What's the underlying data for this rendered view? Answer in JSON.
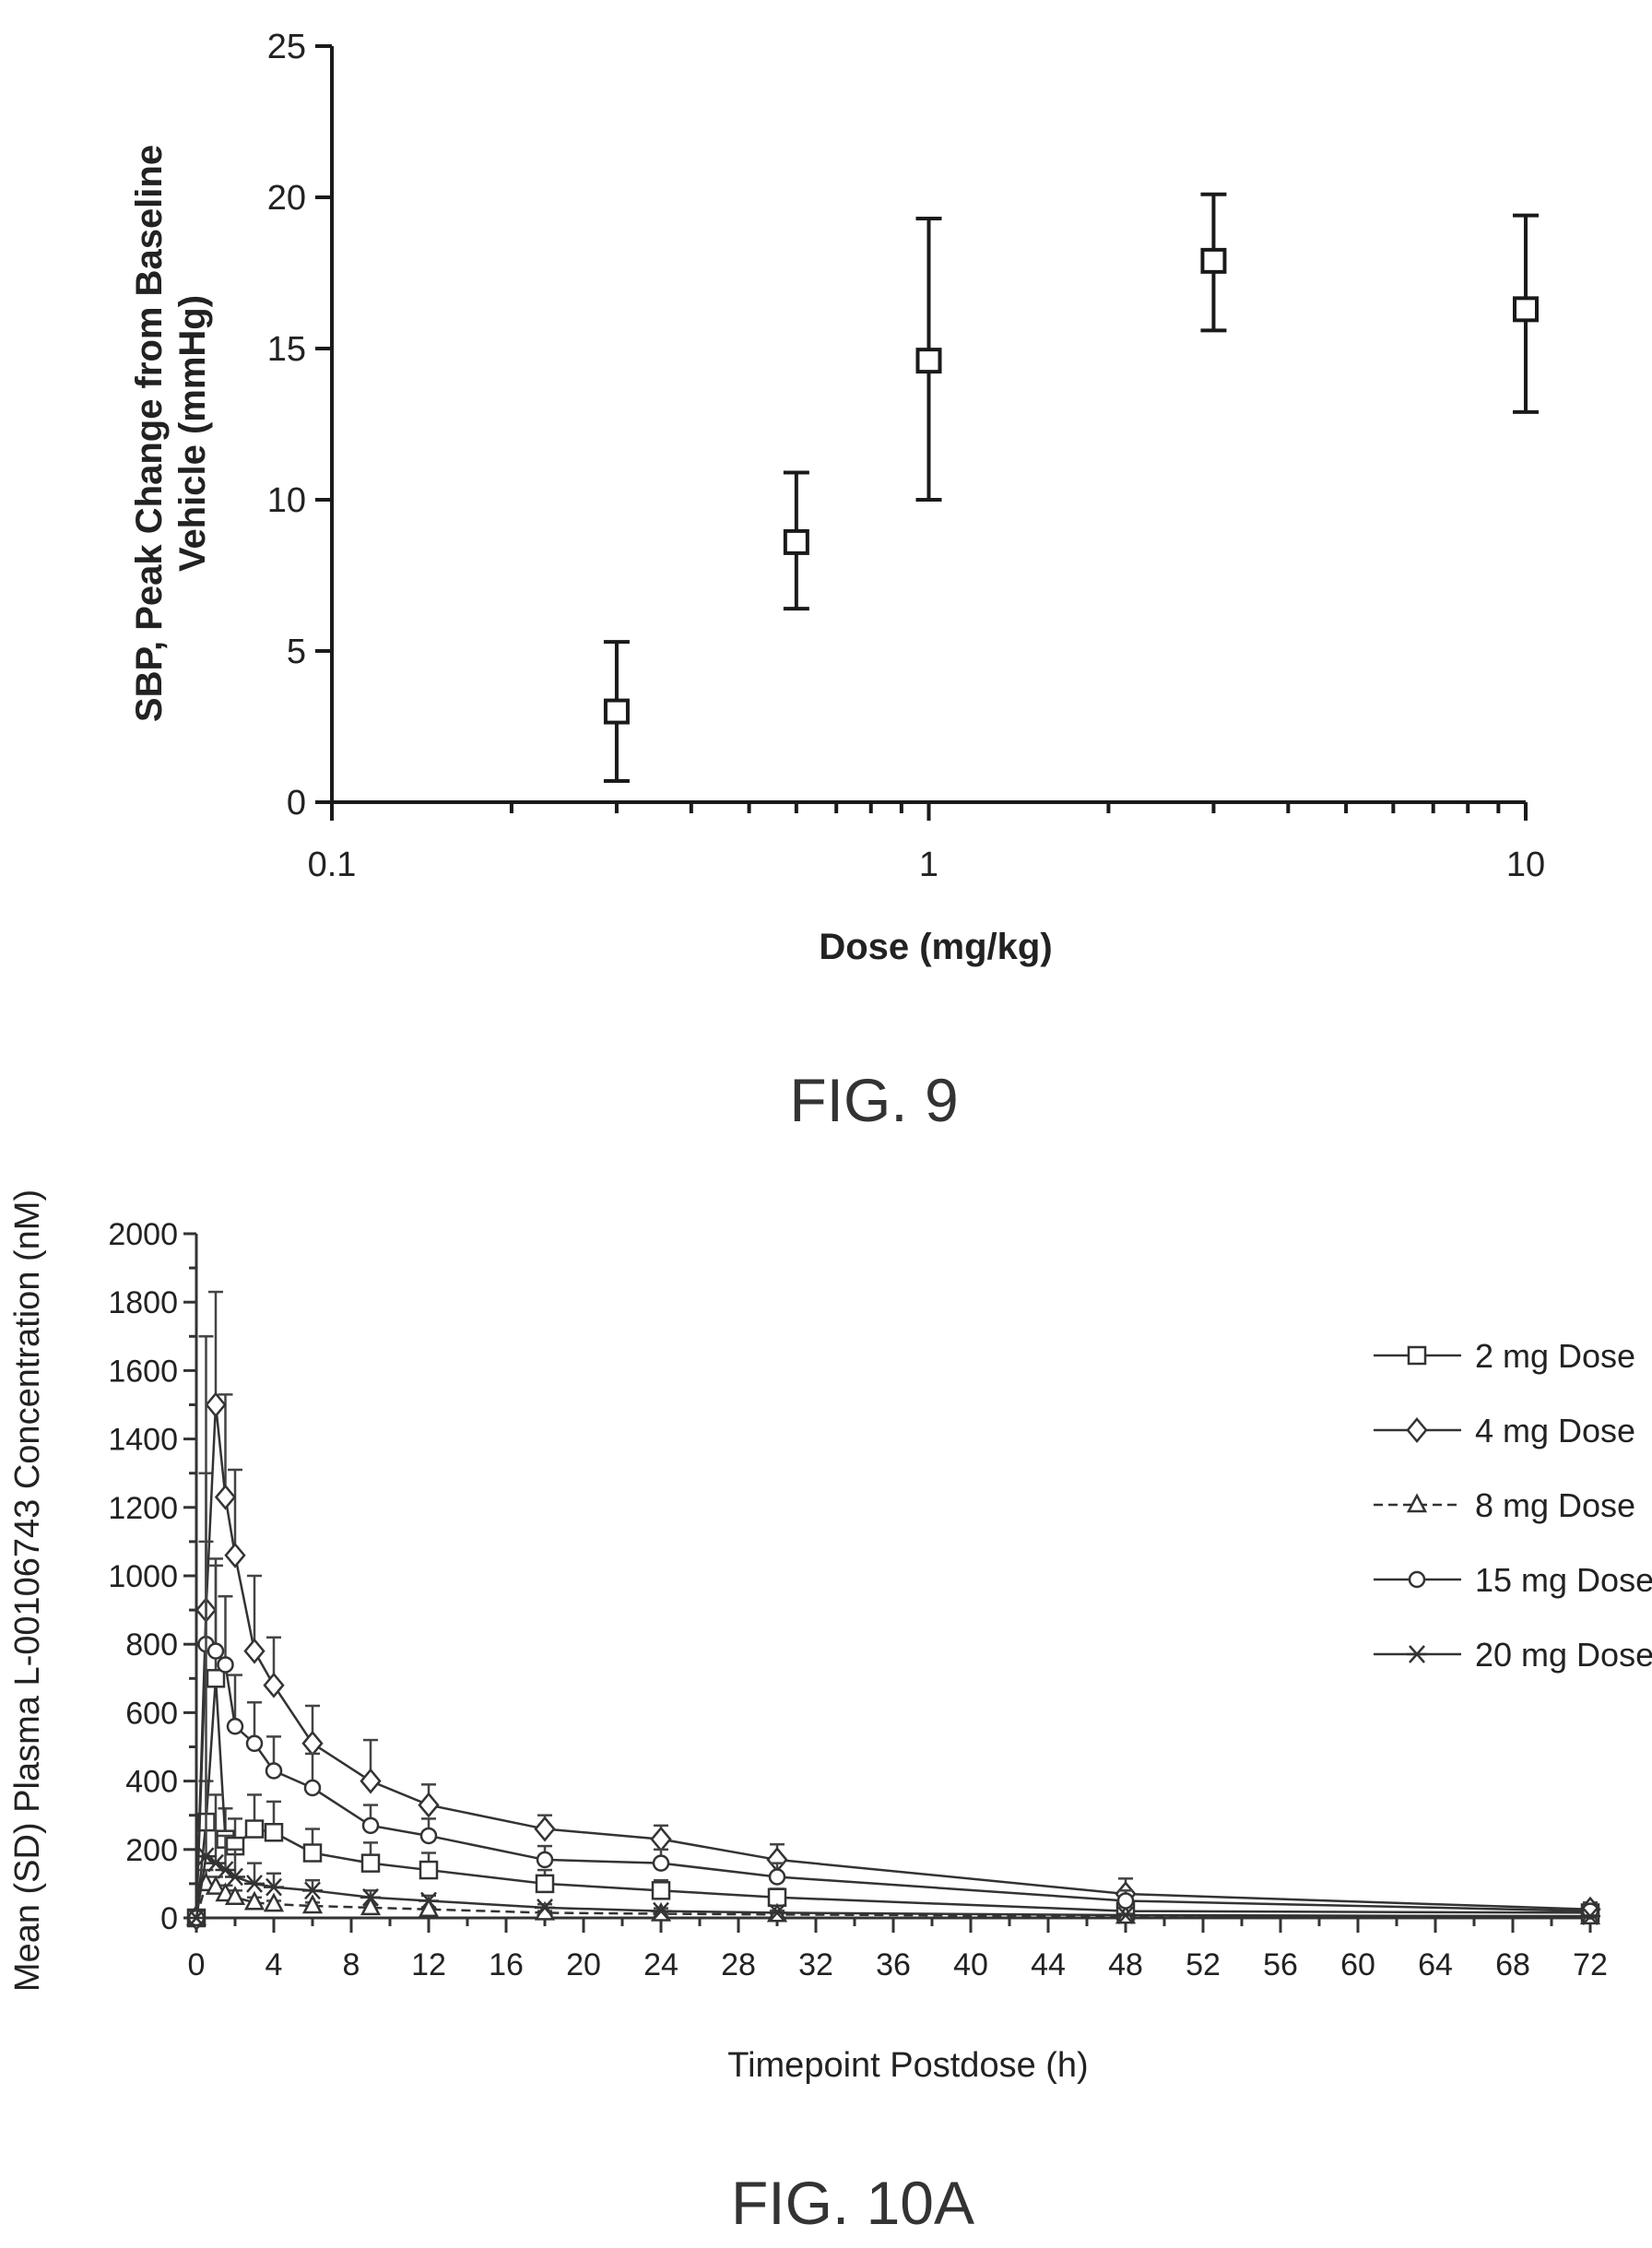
{
  "fig9": {
    "caption": "FIG. 9",
    "chart_data": {
      "type": "scatter",
      "xscale": "log",
      "xlim": [
        0.1,
        10
      ],
      "ylim": [
        0,
        25
      ],
      "xticks": [
        0.1,
        1,
        10
      ],
      "xtick_labels": [
        "0.1",
        "1",
        "10"
      ],
      "yticks": [
        0,
        5,
        10,
        15,
        20,
        25
      ],
      "ytick_labels": [
        "0",
        "5",
        "10",
        "15",
        "20",
        "25"
      ],
      "xlabel": "Dose (mg/kg)",
      "ylabel_line1": "SBP, Peak Change from Baseline",
      "ylabel_line2": "Vehicle (mmHg)",
      "points": [
        {
          "x": 0.3,
          "y": 3.0,
          "err_low": 0.7,
          "err_high": 5.3
        },
        {
          "x": 0.6,
          "y": 8.6,
          "err_low": 6.4,
          "err_high": 10.9
        },
        {
          "x": 1.0,
          "y": 14.6,
          "err_low": 10.0,
          "err_high": 19.3
        },
        {
          "x": 3.0,
          "y": 17.9,
          "err_low": 15.6,
          "err_high": 20.1
        },
        {
          "x": 10.0,
          "y": 16.3,
          "err_low": 12.9,
          "err_high": 19.4
        }
      ]
    }
  },
  "fig10a": {
    "caption": "FIG. 10A",
    "chart_data": {
      "type": "line",
      "xlim": [
        0,
        72
      ],
      "ylim": [
        0,
        2000
      ],
      "xticks": [
        0,
        4,
        8,
        12,
        16,
        20,
        24,
        28,
        32,
        36,
        40,
        44,
        48,
        52,
        56,
        60,
        64,
        68,
        72
      ],
      "yticks": [
        0,
        200,
        400,
        600,
        800,
        1000,
        1200,
        1400,
        1600,
        1800,
        2000
      ],
      "xlabel": "Timepoint Postdose (h)",
      "ylabel": "Mean (SD) Plasma L-00106743 Concentration (nM)",
      "x": [
        0,
        0.5,
        1,
        1.5,
        2,
        3,
        4,
        6,
        9,
        12,
        18,
        24,
        30,
        48,
        72
      ],
      "series": [
        {
          "name": "2 mg Dose",
          "marker": "square",
          "dash": "none",
          "values": [
            0,
            280,
            700,
            230,
            210,
            260,
            250,
            190,
            160,
            140,
            100,
            80,
            60,
            20,
            15
          ],
          "sd": [
            0,
            120,
            350,
            90,
            80,
            100,
            90,
            70,
            60,
            50,
            40,
            30,
            25,
            10,
            8
          ]
        },
        {
          "name": "4 mg Dose",
          "marker": "diamond",
          "dash": "none",
          "values": [
            0,
            900,
            1500,
            1230,
            1060,
            780,
            680,
            510,
            400,
            330,
            260,
            230,
            170,
            70,
            25
          ],
          "sd": [
            0,
            400,
            330,
            300,
            250,
            220,
            140,
            110,
            120,
            60,
            40,
            40,
            45,
            45,
            20
          ]
        },
        {
          "name": "8 mg Dose",
          "marker": "triangle",
          "dash": "dashed",
          "values": [
            0,
            100,
            90,
            70,
            60,
            45,
            40,
            35,
            30,
            25,
            15,
            12,
            10,
            5,
            3
          ],
          "sd": [
            0,
            40,
            30,
            25,
            20,
            15,
            10,
            10,
            8,
            6,
            5,
            4,
            3,
            2,
            1
          ]
        },
        {
          "name": "15 mg Dose",
          "marker": "circle",
          "dash": "none",
          "values": [
            0,
            800,
            780,
            740,
            560,
            510,
            430,
            380,
            270,
            240,
            170,
            160,
            120,
            50,
            20
          ],
          "sd": [
            0,
            300,
            250,
            200,
            150,
            120,
            100,
            100,
            60,
            50,
            40,
            40,
            40,
            30,
            15
          ]
        },
        {
          "name": "20 mg Dose",
          "marker": "asterisk",
          "dash": "none",
          "values": [
            0,
            180,
            160,
            140,
            120,
            100,
            90,
            80,
            60,
            50,
            30,
            20,
            15,
            8,
            5
          ],
          "sd": [
            0,
            1520,
            200,
            100,
            80,
            60,
            40,
            30,
            20,
            15,
            10,
            8,
            6,
            4,
            2
          ]
        }
      ]
    }
  }
}
